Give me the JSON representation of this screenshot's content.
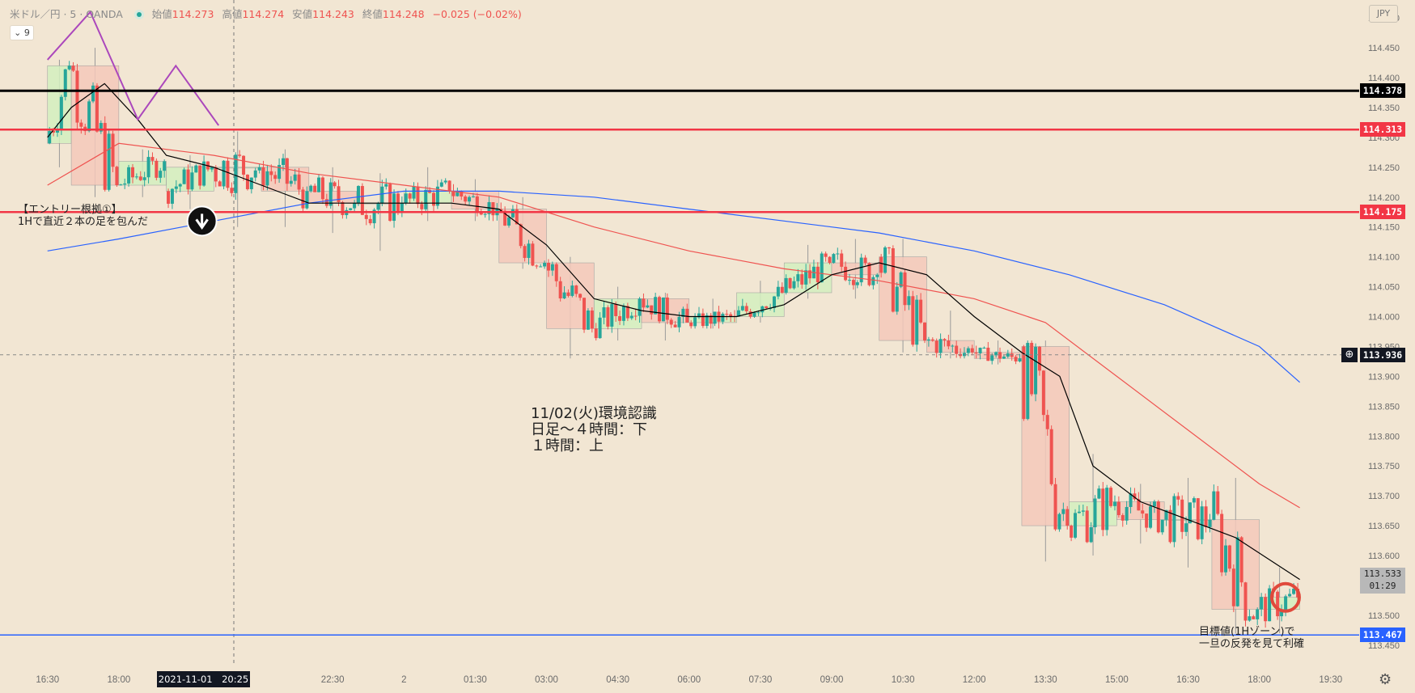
{
  "header": {
    "symbol": "米ドル／円 · 5 · OANDA",
    "open_label": "始値",
    "open": "114.273",
    "high_label": "高値",
    "high": "114.274",
    "low_label": "安値",
    "low": "114.243",
    "close_label": "終値",
    "close": "114.248",
    "change": "−0.025 (−0.02%)"
  },
  "indicator_chip": {
    "label": "9"
  },
  "currency_button": "JPY",
  "annotations": {
    "entry_line1": "【エントリー根拠①】",
    "entry_line2": "1Hで直近２本の足を包んだ",
    "analysis_line1": "11/02(火)環境認識",
    "analysis_line2": "日足～４時間：下",
    "analysis_line3": "１時間：上",
    "target_line1": "目標値(1Hゾーン)で",
    "target_line2": "一旦の反発を見て利確"
  },
  "crosshair_time_label": "2021-11-01　20:25",
  "current_price": {
    "price": "113.533",
    "countdown": "01:29"
  },
  "colors": {
    "background": "#f2e6d3",
    "up": "#26a69a",
    "down": "#ef5350",
    "ma_fast": "#000000",
    "ma_mid": "#ef5350",
    "ma_slow": "#2962ff",
    "zigzag": "#ab47bc",
    "h1_up_fill": "#d4f0c0",
    "h1_down_fill": "#f5c9bb"
  },
  "chart_data": {
    "type": "candlestick",
    "symbol": "USDJPY",
    "timeframe": "5",
    "y_axis": {
      "ylim": [
        113.42,
        114.53
      ],
      "ticks": [
        "114.500",
        "114.450",
        "114.400",
        "114.350",
        "114.300",
        "114.250",
        "114.200",
        "114.150",
        "114.100",
        "114.050",
        "114.000",
        "113.950",
        "113.900",
        "113.850",
        "113.800",
        "113.750",
        "113.700",
        "113.650",
        "113.600",
        "113.550",
        "113.500",
        "113.450"
      ]
    },
    "x_axis": {
      "ticks": [
        {
          "label": "16:30",
          "hour": 16.5
        },
        {
          "label": "18:00",
          "hour": 18.0
        },
        {
          "label": "19:30",
          "hour": 19.5
        },
        {
          "label": "22:30",
          "hour": 22.5
        },
        {
          "label": "2",
          "hour": 24.0
        },
        {
          "label": "01:30",
          "hour": 25.5
        },
        {
          "label": "03:00",
          "hour": 27.0
        },
        {
          "label": "04:30",
          "hour": 28.5
        },
        {
          "label": "06:00",
          "hour": 30.0
        },
        {
          "label": "07:30",
          "hour": 31.5
        },
        {
          "label": "09:00",
          "hour": 33.0
        },
        {
          "label": "10:30",
          "hour": 34.5
        },
        {
          "label": "12:00",
          "hour": 36.0
        },
        {
          "label": "13:30",
          "hour": 37.5
        },
        {
          "label": "15:00",
          "hour": 39.0
        },
        {
          "label": "16:30",
          "hour": 40.5
        },
        {
          "label": "18:00",
          "hour": 42.0
        },
        {
          "label": "19:30",
          "hour": 43.5
        }
      ]
    },
    "horizontal_lines": [
      {
        "price": 114.378,
        "label": "114.378",
        "color": "#000000",
        "width": 3
      },
      {
        "price": 114.313,
        "label": "114.313",
        "color": "#f23645",
        "width": 2.5
      },
      {
        "price": 114.175,
        "label": "114.175",
        "color": "#f23645",
        "width": 2.5
      },
      {
        "price": 113.467,
        "label": "113.467",
        "color": "#2962ff",
        "width": 1.5
      }
    ],
    "price_line": {
      "price": 113.936,
      "label": "113.936"
    },
    "hourly_boxes": [
      {
        "start": 16.5,
        "end": 17.0,
        "open": 114.29,
        "close": 114.42,
        "high": 114.43,
        "low": 114.25
      },
      {
        "start": 17.0,
        "end": 18.0,
        "open": 114.42,
        "close": 114.22,
        "high": 114.45,
        "low": 114.2
      },
      {
        "start": 18.0,
        "end": 19.0,
        "open": 114.22,
        "close": 114.26,
        "high": 114.28,
        "low": 114.2
      },
      {
        "start": 19.0,
        "end": 20.0,
        "open": 114.21,
        "close": 114.25,
        "high": 114.27,
        "low": 114.18
      },
      {
        "start": 20.0,
        "end": 21.0,
        "open": 114.25,
        "close": 114.25,
        "high": 114.31,
        "low": 114.15
      },
      {
        "start": 21.0,
        "end": 22.0,
        "open": 114.25,
        "close": 114.21,
        "high": 114.28,
        "low": 114.15
      },
      {
        "start": 22.0,
        "end": 23.0,
        "open": 114.21,
        "close": 114.19,
        "high": 114.25,
        "low": 114.14
      },
      {
        "start": 23.0,
        "end": 24.0,
        "open": 114.19,
        "close": 114.19,
        "high": 114.24,
        "low": 114.11
      },
      {
        "start": 24.0,
        "end": 25.0,
        "open": 114.19,
        "close": 114.21,
        "high": 114.25,
        "low": 114.16
      },
      {
        "start": 25.0,
        "end": 26.0,
        "open": 114.21,
        "close": 114.18,
        "high": 114.23,
        "low": 114.16
      },
      {
        "start": 26.0,
        "end": 27.0,
        "open": 114.18,
        "close": 114.09,
        "high": 114.2,
        "low": 114.08
      },
      {
        "start": 27.0,
        "end": 28.0,
        "open": 114.09,
        "close": 113.98,
        "high": 114.1,
        "low": 113.93
      },
      {
        "start": 28.0,
        "end": 29.0,
        "open": 113.98,
        "close": 114.03,
        "high": 114.05,
        "low": 113.96
      },
      {
        "start": 29.0,
        "end": 30.0,
        "open": 114.03,
        "close": 113.99,
        "high": 114.04,
        "low": 113.96
      },
      {
        "start": 30.0,
        "end": 31.0,
        "open": 113.99,
        "close": 114.0,
        "high": 114.03,
        "low": 113.98
      },
      {
        "start": 31.0,
        "end": 32.0,
        "open": 114.0,
        "close": 114.04,
        "high": 114.06,
        "low": 113.99
      },
      {
        "start": 32.0,
        "end": 33.0,
        "open": 114.04,
        "close": 114.09,
        "high": 114.12,
        "low": 114.03
      },
      {
        "start": 33.0,
        "end": 34.0,
        "open": 114.09,
        "close": 114.07,
        "high": 114.13,
        "low": 114.03
      },
      {
        "start": 34.0,
        "end": 35.0,
        "open": 114.1,
        "close": 113.96,
        "high": 114.13,
        "low": 113.94
      },
      {
        "start": 35.0,
        "end": 36.0,
        "open": 113.96,
        "close": 113.94,
        "high": 114.01,
        "low": 113.93
      },
      {
        "start": 36.0,
        "end": 37.0,
        "open": 113.94,
        "close": 113.93,
        "high": 113.96,
        "low": 113.92
      },
      {
        "start": 37.0,
        "end": 38.0,
        "open": 113.95,
        "close": 113.65,
        "high": 113.96,
        "low": 113.59
      },
      {
        "start": 38.0,
        "end": 39.0,
        "open": 113.65,
        "close": 113.69,
        "high": 113.77,
        "low": 113.6
      },
      {
        "start": 39.0,
        "end": 40.0,
        "open": 113.69,
        "close": 113.66,
        "high": 113.72,
        "low": 113.62
      },
      {
        "start": 40.0,
        "end": 41.0,
        "open": 113.66,
        "close": 113.66,
        "high": 113.73,
        "low": 113.58
      },
      {
        "start": 41.0,
        "end": 42.0,
        "open": 113.66,
        "close": 113.51,
        "high": 113.73,
        "low": 113.47
      },
      {
        "start": 42.0,
        "end": 42.85,
        "open": 113.51,
        "close": 113.53,
        "high": 113.58,
        "low": 113.47
      }
    ],
    "zigzag": [
      {
        "hour": 16.5,
        "price": 114.43
      },
      {
        "hour": 17.4,
        "price": 114.51
      },
      {
        "hour": 18.4,
        "price": 114.33
      },
      {
        "hour": 19.2,
        "price": 114.42
      },
      {
        "hour": 20.1,
        "price": 114.32
      }
    ],
    "ma_fast": [
      {
        "hour": 16.5,
        "price": 114.3
      },
      {
        "hour": 17.0,
        "price": 114.35
      },
      {
        "hour": 17.7,
        "price": 114.39
      },
      {
        "hour": 18.4,
        "price": 114.33
      },
      {
        "hour": 19.0,
        "price": 114.27
      },
      {
        "hour": 20.0,
        "price": 114.25
      },
      {
        "hour": 21.0,
        "price": 114.22
      },
      {
        "hour": 22.0,
        "price": 114.19
      },
      {
        "hour": 23.0,
        "price": 114.19
      },
      {
        "hour": 24.0,
        "price": 114.19
      },
      {
        "hour": 25.0,
        "price": 114.19
      },
      {
        "hour": 26.0,
        "price": 114.18
      },
      {
        "hour": 27.0,
        "price": 114.12
      },
      {
        "hour": 28.0,
        "price": 114.03
      },
      {
        "hour": 29.0,
        "price": 114.01
      },
      {
        "hour": 30.0,
        "price": 114.0
      },
      {
        "hour": 31.0,
        "price": 114.0
      },
      {
        "hour": 32.0,
        "price": 114.02
      },
      {
        "hour": 33.0,
        "price": 114.07
      },
      {
        "hour": 34.0,
        "price": 114.09
      },
      {
        "hour": 35.0,
        "price": 114.07
      },
      {
        "hour": 36.0,
        "price": 114.0
      },
      {
        "hour": 37.0,
        "price": 113.94
      },
      {
        "hour": 37.8,
        "price": 113.9
      },
      {
        "hour": 38.5,
        "price": 113.75
      },
      {
        "hour": 39.5,
        "price": 113.69
      },
      {
        "hour": 40.5,
        "price": 113.66
      },
      {
        "hour": 41.5,
        "price": 113.63
      },
      {
        "hour": 42.85,
        "price": 113.56
      }
    ],
    "ma_mid": [
      {
        "hour": 16.5,
        "price": 114.22
      },
      {
        "hour": 18.0,
        "price": 114.29
      },
      {
        "hour": 20.0,
        "price": 114.27
      },
      {
        "hour": 22.0,
        "price": 114.24
      },
      {
        "hour": 24.0,
        "price": 114.22
      },
      {
        "hour": 26.0,
        "price": 114.2
      },
      {
        "hour": 28.0,
        "price": 114.15
      },
      {
        "hour": 30.0,
        "price": 114.11
      },
      {
        "hour": 32.0,
        "price": 114.08
      },
      {
        "hour": 34.0,
        "price": 114.06
      },
      {
        "hour": 36.0,
        "price": 114.03
      },
      {
        "hour": 37.5,
        "price": 113.99
      },
      {
        "hour": 39.0,
        "price": 113.9
      },
      {
        "hour": 40.5,
        "price": 113.81
      },
      {
        "hour": 42.0,
        "price": 113.72
      },
      {
        "hour": 42.85,
        "price": 113.68
      }
    ],
    "ma_slow": [
      {
        "hour": 16.5,
        "price": 114.11
      },
      {
        "hour": 18.0,
        "price": 114.13
      },
      {
        "hour": 20.0,
        "price": 114.16
      },
      {
        "hour": 22.0,
        "price": 114.19
      },
      {
        "hour": 24.0,
        "price": 114.21
      },
      {
        "hour": 26.0,
        "price": 114.21
      },
      {
        "hour": 28.0,
        "price": 114.2
      },
      {
        "hour": 30.0,
        "price": 114.18
      },
      {
        "hour": 32.0,
        "price": 114.16
      },
      {
        "hour": 34.0,
        "price": 114.14
      },
      {
        "hour": 36.0,
        "price": 114.11
      },
      {
        "hour": 38.0,
        "price": 114.07
      },
      {
        "hour": 40.0,
        "price": 114.02
      },
      {
        "hour": 42.0,
        "price": 113.95
      },
      {
        "hour": 42.85,
        "price": 113.89
      }
    ],
    "markers": {
      "entry": {
        "hour": 19.75,
        "price": 114.16
      },
      "exit": {
        "hour": 42.55,
        "price": 113.53
      }
    },
    "crosshair_hour": 20.42
  }
}
